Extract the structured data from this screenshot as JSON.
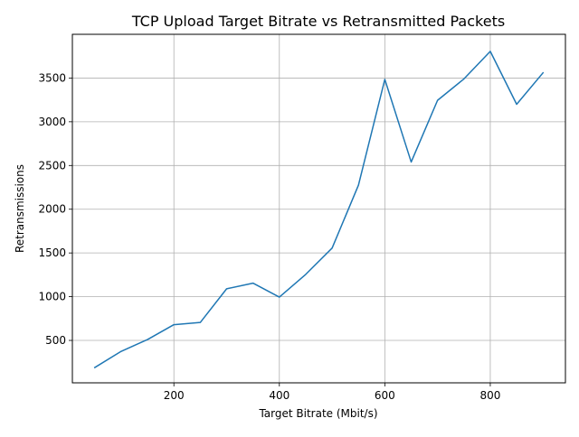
{
  "chart_data": {
    "type": "line",
    "title": "TCP Upload Target Bitrate vs Retransmitted Packets",
    "xlabel": "Target Bitrate (Mbit/s)",
    "ylabel": "Retransmissions",
    "xlim": [
      7.5,
      942.5
    ],
    "ylim": [
      15,
      4000
    ],
    "xticks": [
      200,
      400,
      600,
      800
    ],
    "yticks": [
      500,
      1000,
      1500,
      2000,
      2500,
      3000,
      3500
    ],
    "grid": true,
    "series": [
      {
        "color": "#1f77b4",
        "x": [
          50,
          100,
          150,
          200,
          250,
          300,
          350,
          400,
          450,
          500,
          550,
          600,
          650,
          700,
          750,
          800,
          850,
          900
        ],
        "y": [
          190,
          375,
          510,
          680,
          705,
          1090,
          1155,
          995,
          1255,
          1555,
          2275,
          3485,
          2540,
          3245,
          3490,
          3805,
          3200,
          3560
        ]
      }
    ]
  }
}
